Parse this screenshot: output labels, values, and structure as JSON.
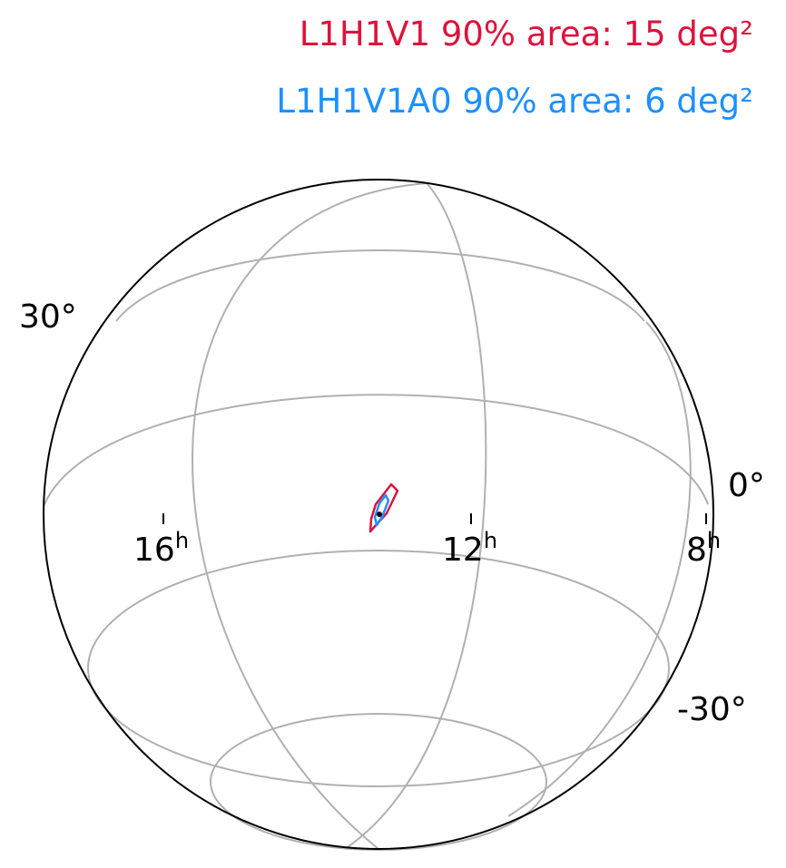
{
  "chart_data": {
    "type": "sky-map",
    "projection": "orthographic globe",
    "legend": [
      {
        "label": "L1H1V1 90% area: 15 deg²",
        "color": "#dc143c"
      },
      {
        "label": "L1H1V1A0 90% area: 6 deg²",
        "color": "#1e90ff"
      }
    ],
    "ra_ticks": [
      {
        "label": "16",
        "unit": "h",
        "ra_hours": 16
      },
      {
        "label": "12",
        "unit": "h",
        "ra_hours": 12
      },
      {
        "label": "8",
        "unit": "h",
        "ra_hours": 8
      }
    ],
    "dec_ticks": [
      {
        "label": "30°",
        "dec_deg": 30
      },
      {
        "label": "0°",
        "dec_deg": 0
      },
      {
        "label": "-30°",
        "dec_deg": -30
      }
    ],
    "center": {
      "ra_hours": 13,
      "dec_deg": 0
    },
    "source_marker": {
      "ra_hours": 13.3,
      "dec_deg": 0.4
    },
    "grid": true,
    "grid_color": "#b0b0b0",
    "outline_color": "#000000"
  }
}
